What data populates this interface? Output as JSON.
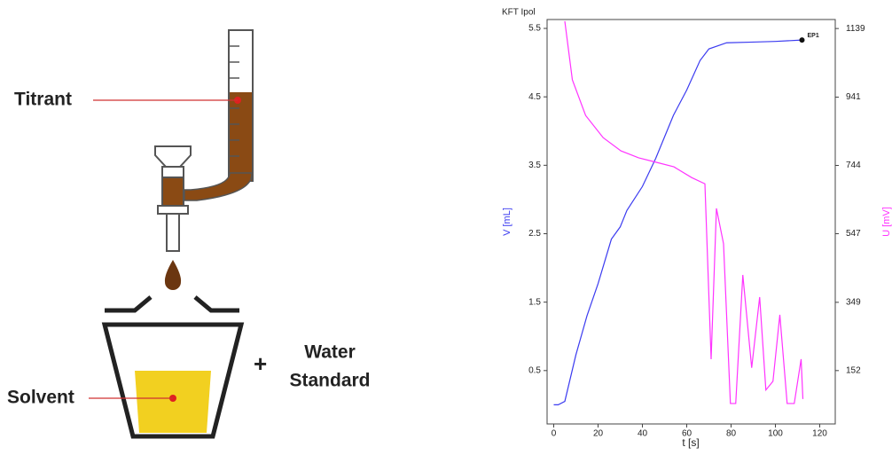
{
  "diagram": {
    "titrant": "Titrant",
    "solvent": "Solvent",
    "plus": "+",
    "water_standard": [
      "Water",
      "Standard"
    ]
  },
  "chart_data": {
    "type": "line",
    "title": "KFT Ipol",
    "x_label": "t [s]",
    "y_label": "V [mL]",
    "y2_label": "U [mV]",
    "xlim": [
      -3,
      127
    ],
    "xticks": [
      0,
      20,
      40,
      60,
      80,
      100,
      120
    ],
    "ylim": [
      -0.28,
      5.63
    ],
    "yticks": [
      0.5,
      1.5,
      2.5,
      3.5,
      4.5,
      5.5
    ],
    "y2lim": [
      -2,
      1165
    ],
    "y2ticks": [
      152,
      349,
      547,
      744,
      941,
      1139
    ],
    "series": [
      {
        "name": "V [mL]",
        "color": "#3b3bf0",
        "x": [
          0,
          2,
          5,
          10,
          15,
          20,
          26,
          30,
          33,
          40,
          46,
          54,
          60,
          66,
          70,
          78,
          90,
          100,
          112
        ],
        "values": [
          0.0,
          0.0,
          0.05,
          0.73,
          1.3,
          1.77,
          2.42,
          2.6,
          2.84,
          3.19,
          3.6,
          4.23,
          4.6,
          5.03,
          5.2,
          5.29,
          5.3,
          5.31,
          5.33
        ]
      },
      {
        "name": "U [mV]",
        "color": "#ff33ff",
        "axis": "y2",
        "x": [
          5,
          8.4,
          14.4,
          22.3,
          30.3,
          38.3,
          46.3,
          54.2,
          62.2,
          68.2,
          71,
          73.4,
          76.6,
          79.7,
          82.1,
          85.3,
          89.3,
          92.9,
          95.7,
          98.9,
          102,
          105.3,
          108.5,
          111.6,
          112.4
        ],
        "values": [
          1160,
          991,
          888,
          824,
          786,
          766,
          753,
          740,
          709,
          691,
          185,
          620,
          518,
          57,
          57,
          428,
          160,
          364,
          96,
          121,
          313,
          57,
          57,
          185,
          70
        ]
      }
    ],
    "annotations": [
      {
        "text": "EP1",
        "x": 112,
        "y": 5.33
      }
    ]
  }
}
